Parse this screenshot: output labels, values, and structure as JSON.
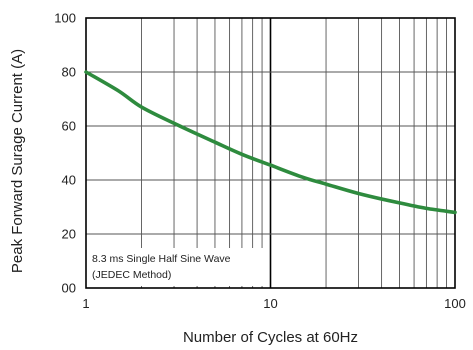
{
  "chart_data": {
    "type": "line",
    "title": "",
    "xlabel": "Number of Cycles at 60Hz",
    "ylabel": "Peak Forward Surage Current (A)",
    "xscale": "log",
    "xlim": [
      1,
      100
    ],
    "ylim": [
      0,
      100
    ],
    "x_ticks": [
      "1",
      "10",
      "100"
    ],
    "y_ticks": [
      "00",
      "20",
      "40",
      "60",
      "80",
      "100"
    ],
    "grid": true,
    "annotation": [
      "8.3 ms Single Half Sine Wave",
      "(JEDEC Method)"
    ],
    "series": [
      {
        "color": "#2e8b3e",
        "x": [
          1,
          1.5,
          2,
          3,
          5,
          7,
          10,
          15,
          20,
          30,
          50,
          70,
          100
        ],
        "y": [
          80,
          73,
          67,
          61,
          54,
          49.5,
          45.5,
          41,
          38.5,
          35,
          31.5,
          29.5,
          28
        ]
      }
    ]
  }
}
